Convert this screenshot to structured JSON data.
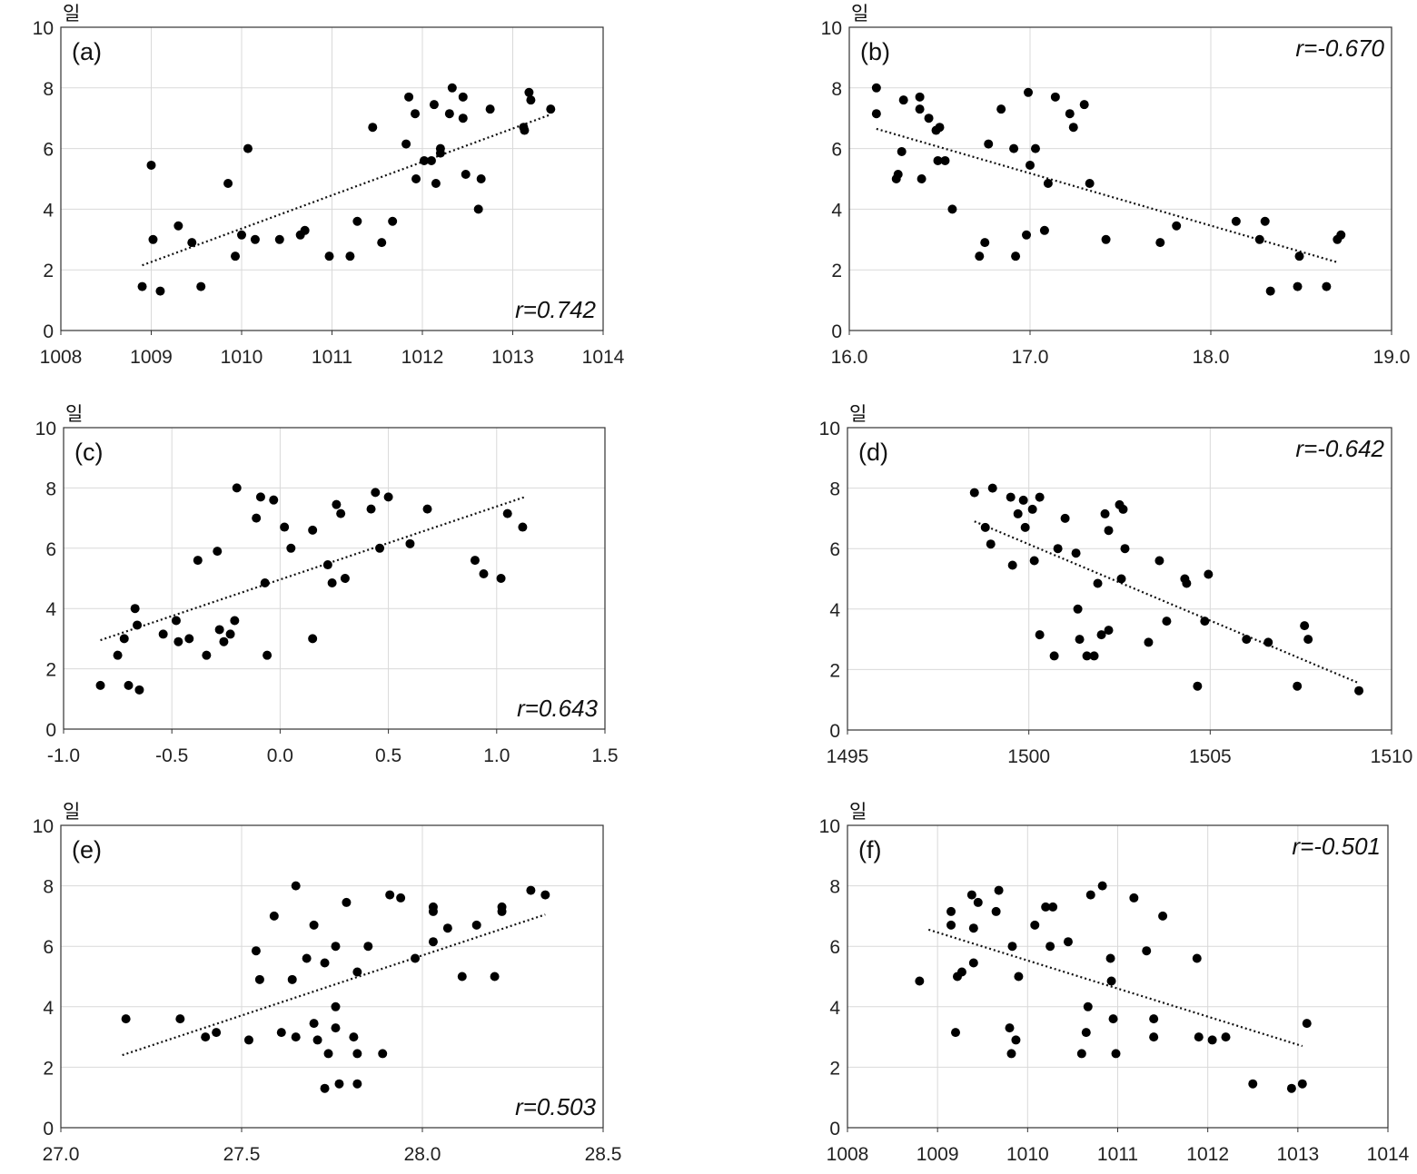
{
  "figure": {
    "unit_label": "일"
  },
  "chart_data": [
    {
      "type": "scatter",
      "panel": "(a)",
      "r_label": "r=0.742",
      "r_position": "bottom-right",
      "xlabel": "",
      "ylabel": "일",
      "xlim": [
        1008,
        1014
      ],
      "ylim": [
        0,
        10
      ],
      "xticks": [
        1008,
        1009,
        1010,
        1011,
        1012,
        1013,
        1014
      ],
      "xtick_labels": [
        "1008",
        "1009",
        "1010",
        "1011",
        "1012",
        "1013",
        "1014"
      ],
      "yticks": [
        0,
        2,
        4,
        6,
        8,
        10
      ],
      "ytick_labels": [
        "0",
        "2",
        "4",
        "6",
        "8",
        "10"
      ],
      "grid": true,
      "points": [
        [
          1008.9,
          1.45
        ],
        [
          1009.0,
          5.45
        ],
        [
          1009.02,
          3.0
        ],
        [
          1009.1,
          1.3
        ],
        [
          1009.3,
          3.45
        ],
        [
          1009.45,
          2.9
        ],
        [
          1009.55,
          1.45
        ],
        [
          1009.85,
          4.85
        ],
        [
          1009.93,
          2.45
        ],
        [
          1010.0,
          3.15
        ],
        [
          1010.07,
          6.0
        ],
        [
          1010.15,
          3.0
        ],
        [
          1010.42,
          3.0
        ],
        [
          1010.65,
          3.15
        ],
        [
          1010.7,
          3.3
        ],
        [
          1010.97,
          2.45
        ],
        [
          1011.2,
          2.45
        ],
        [
          1011.28,
          3.6
        ],
        [
          1011.45,
          6.7
        ],
        [
          1011.55,
          2.9
        ],
        [
          1011.67,
          3.6
        ],
        [
          1011.82,
          6.15
        ],
        [
          1011.85,
          7.7
        ],
        [
          1011.92,
          7.15
        ],
        [
          1011.93,
          5.0
        ],
        [
          1012.02,
          5.6
        ],
        [
          1012.1,
          5.6
        ],
        [
          1012.13,
          7.45
        ],
        [
          1012.15,
          4.85
        ],
        [
          1012.2,
          6.0
        ],
        [
          1012.2,
          5.85
        ],
        [
          1012.3,
          7.15
        ],
        [
          1012.33,
          8.0
        ],
        [
          1012.45,
          7.7
        ],
        [
          1012.45,
          7.0
        ],
        [
          1012.48,
          5.15
        ],
        [
          1012.62,
          4.0
        ],
        [
          1012.65,
          5.0
        ],
        [
          1012.75,
          7.3
        ],
        [
          1013.12,
          6.7
        ],
        [
          1013.13,
          6.6
        ],
        [
          1013.18,
          7.85
        ],
        [
          1013.2,
          7.6
        ],
        [
          1013.42,
          7.3
        ]
      ],
      "trendline": {
        "style": "dotted",
        "x": [
          1008.9,
          1013.4
        ],
        "y": [
          2.15,
          7.1
        ]
      }
    },
    {
      "type": "scatter",
      "panel": "(b)",
      "r_label": "r=-0.670",
      "r_position": "top-right",
      "xlabel": "",
      "ylabel": "일",
      "xlim": [
        16.0,
        19.0
      ],
      "ylim": [
        0,
        10
      ],
      "xticks": [
        16.0,
        17.0,
        18.0,
        19.0
      ],
      "xtick_labels": [
        "16.0",
        "17.0",
        "18.0",
        "19.0"
      ],
      "yticks": [
        0,
        2,
        4,
        6,
        8,
        10
      ],
      "ytick_labels": [
        "0",
        "2",
        "4",
        "6",
        "8",
        "10"
      ],
      "grid": true,
      "points": [
        [
          16.15,
          8.0
        ],
        [
          16.15,
          7.15
        ],
        [
          16.26,
          5.0
        ],
        [
          16.27,
          5.15
        ],
        [
          16.29,
          5.9
        ],
        [
          16.3,
          7.6
        ],
        [
          16.39,
          7.7
        ],
        [
          16.39,
          7.3
        ],
        [
          16.4,
          5.0
        ],
        [
          16.44,
          7.0
        ],
        [
          16.48,
          6.6
        ],
        [
          16.5,
          6.7
        ],
        [
          16.49,
          5.6
        ],
        [
          16.53,
          5.6
        ],
        [
          16.57,
          4.0
        ],
        [
          16.72,
          2.45
        ],
        [
          16.75,
          2.9
        ],
        [
          16.77,
          6.15
        ],
        [
          16.84,
          7.3
        ],
        [
          16.91,
          6.0
        ],
        [
          16.92,
          2.45
        ],
        [
          16.98,
          3.15
        ],
        [
          16.99,
          7.85
        ],
        [
          17.0,
          5.45
        ],
        [
          17.03,
          6.0
        ],
        [
          17.08,
          3.3
        ],
        [
          17.1,
          4.85
        ],
        [
          17.14,
          7.7
        ],
        [
          17.22,
          7.15
        ],
        [
          17.24,
          6.7
        ],
        [
          17.3,
          7.45
        ],
        [
          17.33,
          4.85
        ],
        [
          17.42,
          3.0
        ],
        [
          17.72,
          2.9
        ],
        [
          17.81,
          3.45
        ],
        [
          18.14,
          3.6
        ],
        [
          18.27,
          3.0
        ],
        [
          18.3,
          3.6
        ],
        [
          18.33,
          1.3
        ],
        [
          18.48,
          1.45
        ],
        [
          18.49,
          2.45
        ],
        [
          18.64,
          1.45
        ],
        [
          18.7,
          3.0
        ],
        [
          18.72,
          3.15
        ]
      ],
      "trendline": {
        "style": "dotted",
        "x": [
          16.15,
          18.7
        ],
        "y": [
          6.65,
          2.25
        ]
      }
    },
    {
      "type": "scatter",
      "panel": "(c)",
      "r_label": "r=0.643",
      "r_position": "bottom-right",
      "xlabel": "",
      "ylabel": "일",
      "xlim": [
        -1.0,
        1.5
      ],
      "ylim": [
        0,
        10
      ],
      "xticks": [
        -1.0,
        -0.5,
        0.0,
        0.5,
        1.0,
        1.5
      ],
      "xtick_labels": [
        "-1.0",
        "-0.5",
        "0.0",
        "0.5",
        "1.0",
        "1.5"
      ],
      "yticks": [
        0,
        2,
        4,
        6,
        8,
        10
      ],
      "ytick_labels": [
        "0",
        "2",
        "4",
        "6",
        "8",
        "10"
      ],
      "grid": true,
      "points": [
        [
          -0.83,
          1.45
        ],
        [
          -0.75,
          2.45
        ],
        [
          -0.72,
          3.0
        ],
        [
          -0.7,
          1.45
        ],
        [
          -0.67,
          4.0
        ],
        [
          -0.66,
          3.45
        ],
        [
          -0.65,
          1.3
        ],
        [
          -0.54,
          3.15
        ],
        [
          -0.48,
          3.6
        ],
        [
          -0.47,
          2.9
        ],
        [
          -0.42,
          3.0
        ],
        [
          -0.38,
          5.6
        ],
        [
          -0.34,
          2.45
        ],
        [
          -0.29,
          5.9
        ],
        [
          -0.28,
          3.3
        ],
        [
          -0.26,
          2.9
        ],
        [
          -0.23,
          3.15
        ],
        [
          -0.21,
          3.6
        ],
        [
          -0.2,
          8.0
        ],
        [
          -0.11,
          7.0
        ],
        [
          -0.09,
          7.7
        ],
        [
          -0.07,
          4.85
        ],
        [
          -0.06,
          2.45
        ],
        [
          -0.03,
          7.6
        ],
        [
          0.02,
          6.7
        ],
        [
          0.05,
          6.0
        ],
        [
          0.15,
          3.0
        ],
        [
          0.15,
          6.6
        ],
        [
          0.22,
          5.45
        ],
        [
          0.24,
          4.85
        ],
        [
          0.26,
          7.45
        ],
        [
          0.28,
          7.15
        ],
        [
          0.3,
          5.0
        ],
        [
          0.42,
          7.3
        ],
        [
          0.44,
          7.85
        ],
        [
          0.46,
          6.0
        ],
        [
          0.5,
          7.7
        ],
        [
          0.6,
          6.15
        ],
        [
          0.68,
          7.3
        ],
        [
          0.9,
          5.6
        ],
        [
          0.94,
          5.15
        ],
        [
          1.02,
          5.0
        ],
        [
          1.05,
          7.15
        ],
        [
          1.12,
          6.7
        ]
      ],
      "trendline": {
        "style": "dotted",
        "x": [
          -0.83,
          1.13
        ],
        "y": [
          2.95,
          7.7
        ]
      }
    },
    {
      "type": "scatter",
      "panel": "(d)",
      "r_label": "r=-0.642",
      "r_position": "top-right",
      "xlabel": "",
      "ylabel": "일",
      "xlim": [
        1495,
        1510
      ],
      "ylim": [
        0,
        10
      ],
      "xticks": [
        1495,
        1500,
        1505,
        1510
      ],
      "xtick_labels": [
        "1495",
        "1500",
        "1505",
        "1510"
      ],
      "yticks": [
        0,
        2,
        4,
        6,
        8,
        10
      ],
      "ytick_labels": [
        "0",
        "2",
        "4",
        "6",
        "8",
        "10"
      ],
      "grid": true,
      "points": [
        [
          1498.5,
          7.85
        ],
        [
          1498.8,
          6.7
        ],
        [
          1498.95,
          6.15
        ],
        [
          1499.0,
          8.0
        ],
        [
          1499.5,
          7.7
        ],
        [
          1499.55,
          5.45
        ],
        [
          1499.7,
          7.15
        ],
        [
          1499.85,
          7.6
        ],
        [
          1499.9,
          6.7
        ],
        [
          1500.1,
          7.3
        ],
        [
          1500.15,
          5.6
        ],
        [
          1500.3,
          7.7
        ],
        [
          1500.3,
          3.15
        ],
        [
          1500.7,
          2.45
        ],
        [
          1500.8,
          6.0
        ],
        [
          1501.0,
          7.0
        ],
        [
          1501.3,
          5.85
        ],
        [
          1501.35,
          4.0
        ],
        [
          1501.4,
          3.0
        ],
        [
          1501.6,
          2.45
        ],
        [
          1501.8,
          2.45
        ],
        [
          1501.9,
          4.85
        ],
        [
          1502.0,
          3.15
        ],
        [
          1502.1,
          7.15
        ],
        [
          1502.2,
          6.6
        ],
        [
          1502.2,
          3.3
        ],
        [
          1502.5,
          7.45
        ],
        [
          1502.55,
          5.0
        ],
        [
          1502.6,
          7.3
        ],
        [
          1502.65,
          6.0
        ],
        [
          1503.3,
          2.9
        ],
        [
          1503.6,
          5.6
        ],
        [
          1503.8,
          3.6
        ],
        [
          1504.3,
          5.0
        ],
        [
          1504.35,
          4.85
        ],
        [
          1504.65,
          1.45
        ],
        [
          1504.85,
          3.6
        ],
        [
          1504.95,
          5.15
        ],
        [
          1506.0,
          3.0
        ],
        [
          1506.6,
          2.9
        ],
        [
          1507.4,
          1.45
        ],
        [
          1507.6,
          3.45
        ],
        [
          1507.7,
          3.0
        ],
        [
          1509.1,
          1.3
        ]
      ],
      "trendline": {
        "style": "dotted",
        "x": [
          1498.5,
          1509.1
        ],
        "y": [
          6.9,
          1.55
        ]
      }
    },
    {
      "type": "scatter",
      "panel": "(e)",
      "r_label": "r=0.503",
      "r_position": "bottom-right",
      "xlabel": "",
      "ylabel": "일",
      "xlim": [
        27.0,
        28.5
      ],
      "ylim": [
        0,
        10
      ],
      "xticks": [
        27.0,
        27.5,
        28.0,
        28.5
      ],
      "xtick_labels": [
        "27.0",
        "27.5",
        "28.0",
        "28.5"
      ],
      "yticks": [
        0,
        2,
        4,
        6,
        8,
        10
      ],
      "ytick_labels": [
        "0",
        "2",
        "4",
        "6",
        "8",
        "10"
      ],
      "grid": true,
      "points": [
        [
          27.18,
          3.6
        ],
        [
          27.33,
          3.6
        ],
        [
          27.4,
          3.0
        ],
        [
          27.43,
          3.15
        ],
        [
          27.52,
          2.9
        ],
        [
          27.54,
          5.85
        ],
        [
          27.55,
          4.9
        ],
        [
          27.59,
          7.0
        ],
        [
          27.61,
          3.15
        ],
        [
          27.64,
          4.9
        ],
        [
          27.65,
          3.0
        ],
        [
          27.65,
          8.0
        ],
        [
          27.68,
          5.6
        ],
        [
          27.7,
          6.7
        ],
        [
          27.7,
          3.45
        ],
        [
          27.71,
          2.9
        ],
        [
          27.73,
          5.45
        ],
        [
          27.73,
          1.3
        ],
        [
          27.74,
          2.45
        ],
        [
          27.76,
          6.0
        ],
        [
          27.76,
          3.3
        ],
        [
          27.76,
          4.0
        ],
        [
          27.77,
          1.45
        ],
        [
          27.79,
          7.45
        ],
        [
          27.81,
          3.0
        ],
        [
          27.82,
          5.15
        ],
        [
          27.82,
          2.45
        ],
        [
          27.82,
          1.45
        ],
        [
          27.85,
          6.0
        ],
        [
          27.89,
          2.45
        ],
        [
          27.91,
          7.7
        ],
        [
          27.94,
          7.6
        ],
        [
          27.98,
          5.6
        ],
        [
          28.03,
          7.3
        ],
        [
          28.03,
          7.15
        ],
        [
          28.03,
          6.15
        ],
        [
          28.07,
          6.6
        ],
        [
          28.11,
          5.0
        ],
        [
          28.15,
          6.7
        ],
        [
          28.2,
          5.0
        ],
        [
          28.22,
          7.15
        ],
        [
          28.22,
          7.3
        ],
        [
          28.3,
          7.85
        ],
        [
          28.34,
          7.7
        ]
      ],
      "trendline": {
        "style": "dotted",
        "x": [
          27.17,
          28.34
        ],
        "y": [
          2.4,
          7.05
        ]
      }
    },
    {
      "type": "scatter",
      "panel": "(f)",
      "r_label": "r=-0.501",
      "r_position": "top-right",
      "xlabel": "",
      "ylabel": "일",
      "xlim": [
        1008,
        1014
      ],
      "ylim": [
        0,
        10
      ],
      "xticks": [
        1008,
        1009,
        1010,
        1011,
        1012,
        1013,
        1014
      ],
      "xtick_labels": [
        "1008",
        "1009",
        "1010",
        "1011",
        "1012",
        "1013",
        "1014"
      ],
      "yticks": [
        0,
        2,
        4,
        6,
        8,
        10
      ],
      "ytick_labels": [
        "0",
        "2",
        "4",
        "6",
        "8",
        "10"
      ],
      "grid": true,
      "points": [
        [
          1008.8,
          4.85
        ],
        [
          1009.15,
          7.15
        ],
        [
          1009.15,
          6.7
        ],
        [
          1009.2,
          3.15
        ],
        [
          1009.22,
          5.0
        ],
        [
          1009.27,
          5.15
        ],
        [
          1009.38,
          7.7
        ],
        [
          1009.4,
          6.6
        ],
        [
          1009.4,
          5.45
        ],
        [
          1009.45,
          7.45
        ],
        [
          1009.65,
          7.15
        ],
        [
          1009.68,
          7.85
        ],
        [
          1009.8,
          3.3
        ],
        [
          1009.82,
          2.45
        ],
        [
          1009.83,
          6.0
        ],
        [
          1009.87,
          2.9
        ],
        [
          1009.9,
          5.0
        ],
        [
          1010.08,
          6.7
        ],
        [
          1010.2,
          7.3
        ],
        [
          1010.25,
          6.0
        ],
        [
          1010.28,
          7.3
        ],
        [
          1010.45,
          6.15
        ],
        [
          1010.6,
          2.45
        ],
        [
          1010.65,
          3.15
        ],
        [
          1010.67,
          4.0
        ],
        [
          1010.7,
          7.7
        ],
        [
          1010.83,
          8.0
        ],
        [
          1010.92,
          5.6
        ],
        [
          1010.93,
          4.85
        ],
        [
          1010.95,
          3.6
        ],
        [
          1010.98,
          2.45
        ],
        [
          1011.18,
          7.6
        ],
        [
          1011.32,
          5.85
        ],
        [
          1011.4,
          3.6
        ],
        [
          1011.4,
          3.0
        ],
        [
          1011.5,
          7.0
        ],
        [
          1011.88,
          5.6
        ],
        [
          1011.9,
          3.0
        ],
        [
          1012.05,
          2.9
        ],
        [
          1012.2,
          3.0
        ],
        [
          1012.5,
          1.45
        ],
        [
          1012.93,
          1.3
        ],
        [
          1013.05,
          1.45
        ],
        [
          1013.1,
          3.45
        ]
      ],
      "trendline": {
        "style": "dotted",
        "x": [
          1008.9,
          1013.05
        ],
        "y": [
          6.55,
          2.7
        ]
      }
    }
  ]
}
